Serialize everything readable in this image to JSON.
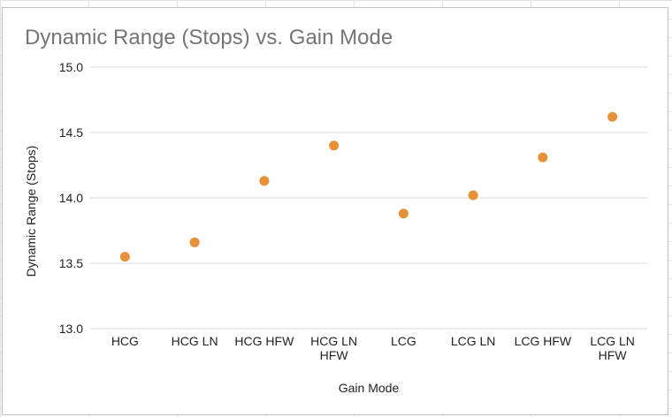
{
  "chart_data": {
    "type": "scatter",
    "title": "Dynamic Range (Stops) vs. Gain Mode",
    "xlabel": "Gain Mode",
    "ylabel": "Dynamic Range (Stops)",
    "categories": [
      "HCG",
      "HCG LN",
      "HCG HFW",
      "HCG LN HFW",
      "LCG",
      "LCG LN",
      "LCG HFW",
      "LCG LN HFW"
    ],
    "values": [
      13.55,
      13.66,
      14.13,
      14.4,
      13.88,
      14.02,
      14.31,
      14.62
    ],
    "ylim": [
      13.0,
      15.0
    ],
    "yticks": [
      "13.0",
      "13.5",
      "14.0",
      "14.5",
      "15.0"
    ],
    "grid": true,
    "legend": "none",
    "marker_color": "#E69138",
    "gridline_color": "#d9d9d9"
  }
}
